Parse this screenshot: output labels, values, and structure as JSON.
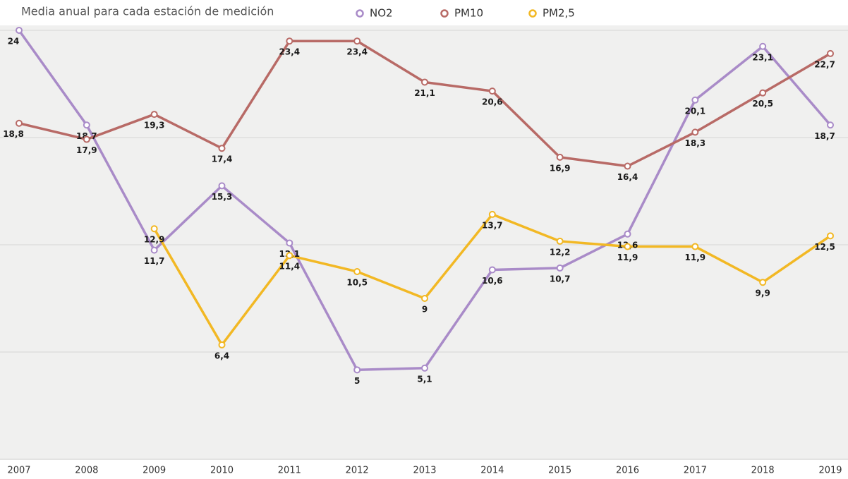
{
  "chart_data": {
    "type": "line",
    "title": "Media anual para cada estación de medición",
    "categories": [
      "2007",
      "2008",
      "2009",
      "2010",
      "2011",
      "2012",
      "2013",
      "2014",
      "2015",
      "2016",
      "2017",
      "2018",
      "2019"
    ],
    "ylim": [
      0,
      24
    ],
    "yticks": [
      0,
      6,
      12,
      18,
      24
    ],
    "grid": true,
    "series": [
      {
        "name": "NO2",
        "color": "#a98bc8",
        "values": [
          24,
          18.7,
          11.7,
          15.3,
          12.1,
          5,
          5.1,
          10.6,
          10.7,
          12.6,
          20.1,
          23.1,
          18.7
        ],
        "value_labels": [
          "24",
          "18,7",
          "11,7",
          "15,3",
          "12,1",
          "5",
          "5,1",
          "10,6",
          "10,7",
          "12,6",
          "20,1",
          "23,1",
          "18,7"
        ]
      },
      {
        "name": "PM10",
        "color": "#b86a66",
        "values": [
          18.8,
          17.9,
          19.3,
          17.4,
          23.4,
          23.4,
          21.1,
          20.6,
          16.9,
          16.4,
          18.3,
          20.5,
          22.7
        ],
        "value_labels": [
          "18,8",
          "17,9",
          "19,3",
          "17,4",
          "23,4",
          "23,4",
          "21,1",
          "20,6",
          "16,9",
          "16,4",
          "18,3",
          "20,5",
          "22,7"
        ]
      },
      {
        "name": "PM2,5",
        "color": "#f2b824",
        "values": [
          null,
          null,
          12.9,
          6.4,
          11.4,
          10.5,
          9,
          13.7,
          12.2,
          11.9,
          11.9,
          9.9,
          12.5
        ],
        "value_labels": [
          null,
          null,
          "12,9",
          "6,4",
          "11,4",
          "10,5",
          "9",
          "13,7",
          "12,2",
          "11,9",
          "11,9",
          "9,9",
          "12,5"
        ]
      }
    ]
  }
}
